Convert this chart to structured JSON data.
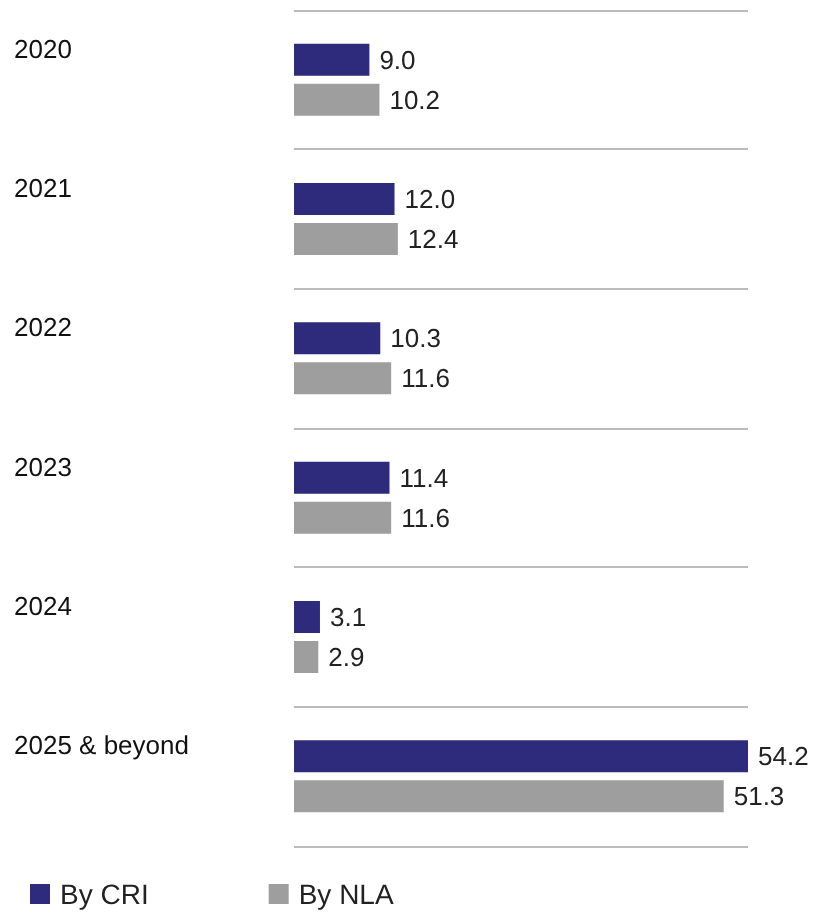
{
  "chart_data": {
    "type": "bar",
    "orientation": "horizontal",
    "categories": [
      "2020",
      "2021",
      "2022",
      "2023",
      "2024",
      "2025 & beyond"
    ],
    "series": [
      {
        "name": "By CRI",
        "color": "#2e2a7c",
        "values": [
          9.0,
          12.0,
          10.3,
          11.4,
          3.1,
          54.2
        ],
        "value_labels": [
          "9.0",
          "12.0",
          "10.3",
          "11.4",
          "3.1",
          "54.2"
        ]
      },
      {
        "name": "By NLA",
        "color": "#9e9e9e",
        "values": [
          10.2,
          12.4,
          11.6,
          11.6,
          2.9,
          51.3
        ],
        "value_labels": [
          "10.2",
          "12.4",
          "11.6",
          "11.6",
          "2.9",
          "51.3"
        ]
      }
    ],
    "grid": "y",
    "legend": "bottom left"
  }
}
